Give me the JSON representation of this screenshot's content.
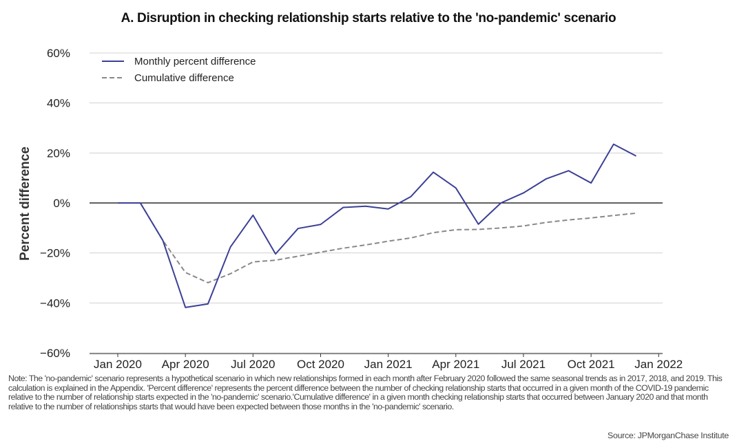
{
  "chart_data": {
    "type": "line",
    "title": "A. Disruption in checking relationship starts relative to the 'no-pandemic' scenario",
    "xlabel": "",
    "ylabel": "Percent difference",
    "ylim": [
      -60,
      60
    ],
    "yticks": [
      60,
      40,
      20,
      0,
      -20,
      -40,
      -60
    ],
    "ytick_labels": [
      "60%",
      "40%",
      "20%",
      "0%",
      "−20%",
      "−40%",
      "−60%"
    ],
    "xtick_labels": [
      "Jan 2020",
      "Apr 2020",
      "Jul 2020",
      "Oct 2020",
      "Jan 2021",
      "Apr 2021",
      "Jul 2021",
      "Oct 2021",
      "Jan 2022"
    ],
    "x": [
      "2020-01",
      "2020-02",
      "2020-03",
      "2020-04",
      "2020-05",
      "2020-06",
      "2020-07",
      "2020-08",
      "2020-09",
      "2020-10",
      "2020-11",
      "2020-12",
      "2021-01",
      "2021-02",
      "2021-03",
      "2021-04",
      "2021-05",
      "2021-06",
      "2021-07",
      "2021-08",
      "2021-09",
      "2021-10",
      "2021-11",
      "2021-12"
    ],
    "grid": "horizontal",
    "legend_position": "top-left",
    "series": [
      {
        "name": "Monthly percent difference",
        "color": "#3b3f96",
        "style": "solid",
        "values": [
          0,
          0,
          -15,
          -41.8,
          -40.4,
          -17.6,
          -4.9,
          -20.4,
          -10.2,
          -8.6,
          -1.8,
          -1.3,
          -2.4,
          2.5,
          12.3,
          6,
          -8.5,
          0,
          4,
          9.6,
          12.9,
          8,
          23.5,
          18.8
        ]
      },
      {
        "name": "Cumulative difference",
        "color": "#888888",
        "style": "dashed",
        "values": [
          0,
          0,
          -15,
          -27.8,
          -31.9,
          -28.3,
          -23.6,
          -22.9,
          -21.3,
          -19.7,
          -18.1,
          -16.8,
          -15.3,
          -14,
          -11.9,
          -10.7,
          -10.6,
          -10,
          -9.2,
          -7.8,
          -6.8,
          -6,
          -5,
          -4.1
        ]
      }
    ]
  },
  "note": "Note: The 'no-pandemic' scenario represents a hypothetical scenario in which new relationships formed in each month after February 2020 followed the same seasonal trends as in 2017, 2018, and 2019. This calculation is explained in the Appendix. 'Percent difference' represents the percent difference between the number of checking relationship starts that occurred in a given month of the COVID-19 pandemic relative to the number of relationship starts expected in the 'no-pandemic' scenario.'Cumulative difference' in a given month checking relationship starts that occurred between January 2020 and that month relative to the number of relationships starts that would have been expected between those months in the 'no-pandemic' scenario.",
  "source": "Source: JPMorganChase Institute"
}
